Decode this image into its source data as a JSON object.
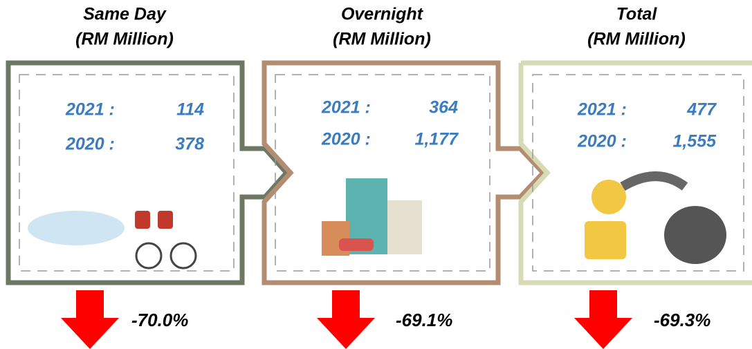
{
  "panels": [
    {
      "title": "Same Day",
      "subtitle": "(RM Million)",
      "rows": [
        {
          "label": "2021 :",
          "value": "114"
        },
        {
          "label": "2020 :",
          "value": "378"
        }
      ],
      "change": "-70.0%"
    },
    {
      "title": "Overnight",
      "subtitle": "(RM Million)",
      "rows": [
        {
          "label": "2021 :",
          "value": "364"
        },
        {
          "label": "2020 :",
          "value": "1,177"
        }
      ],
      "change": "-69.1%"
    },
    {
      "title": "Total",
      "subtitle": "(RM Million)",
      "rows": [
        {
          "label": "2021 :",
          "value": "477"
        },
        {
          "label": "2020 :",
          "value": "1,555"
        }
      ],
      "change": "-69.3%"
    }
  ]
}
